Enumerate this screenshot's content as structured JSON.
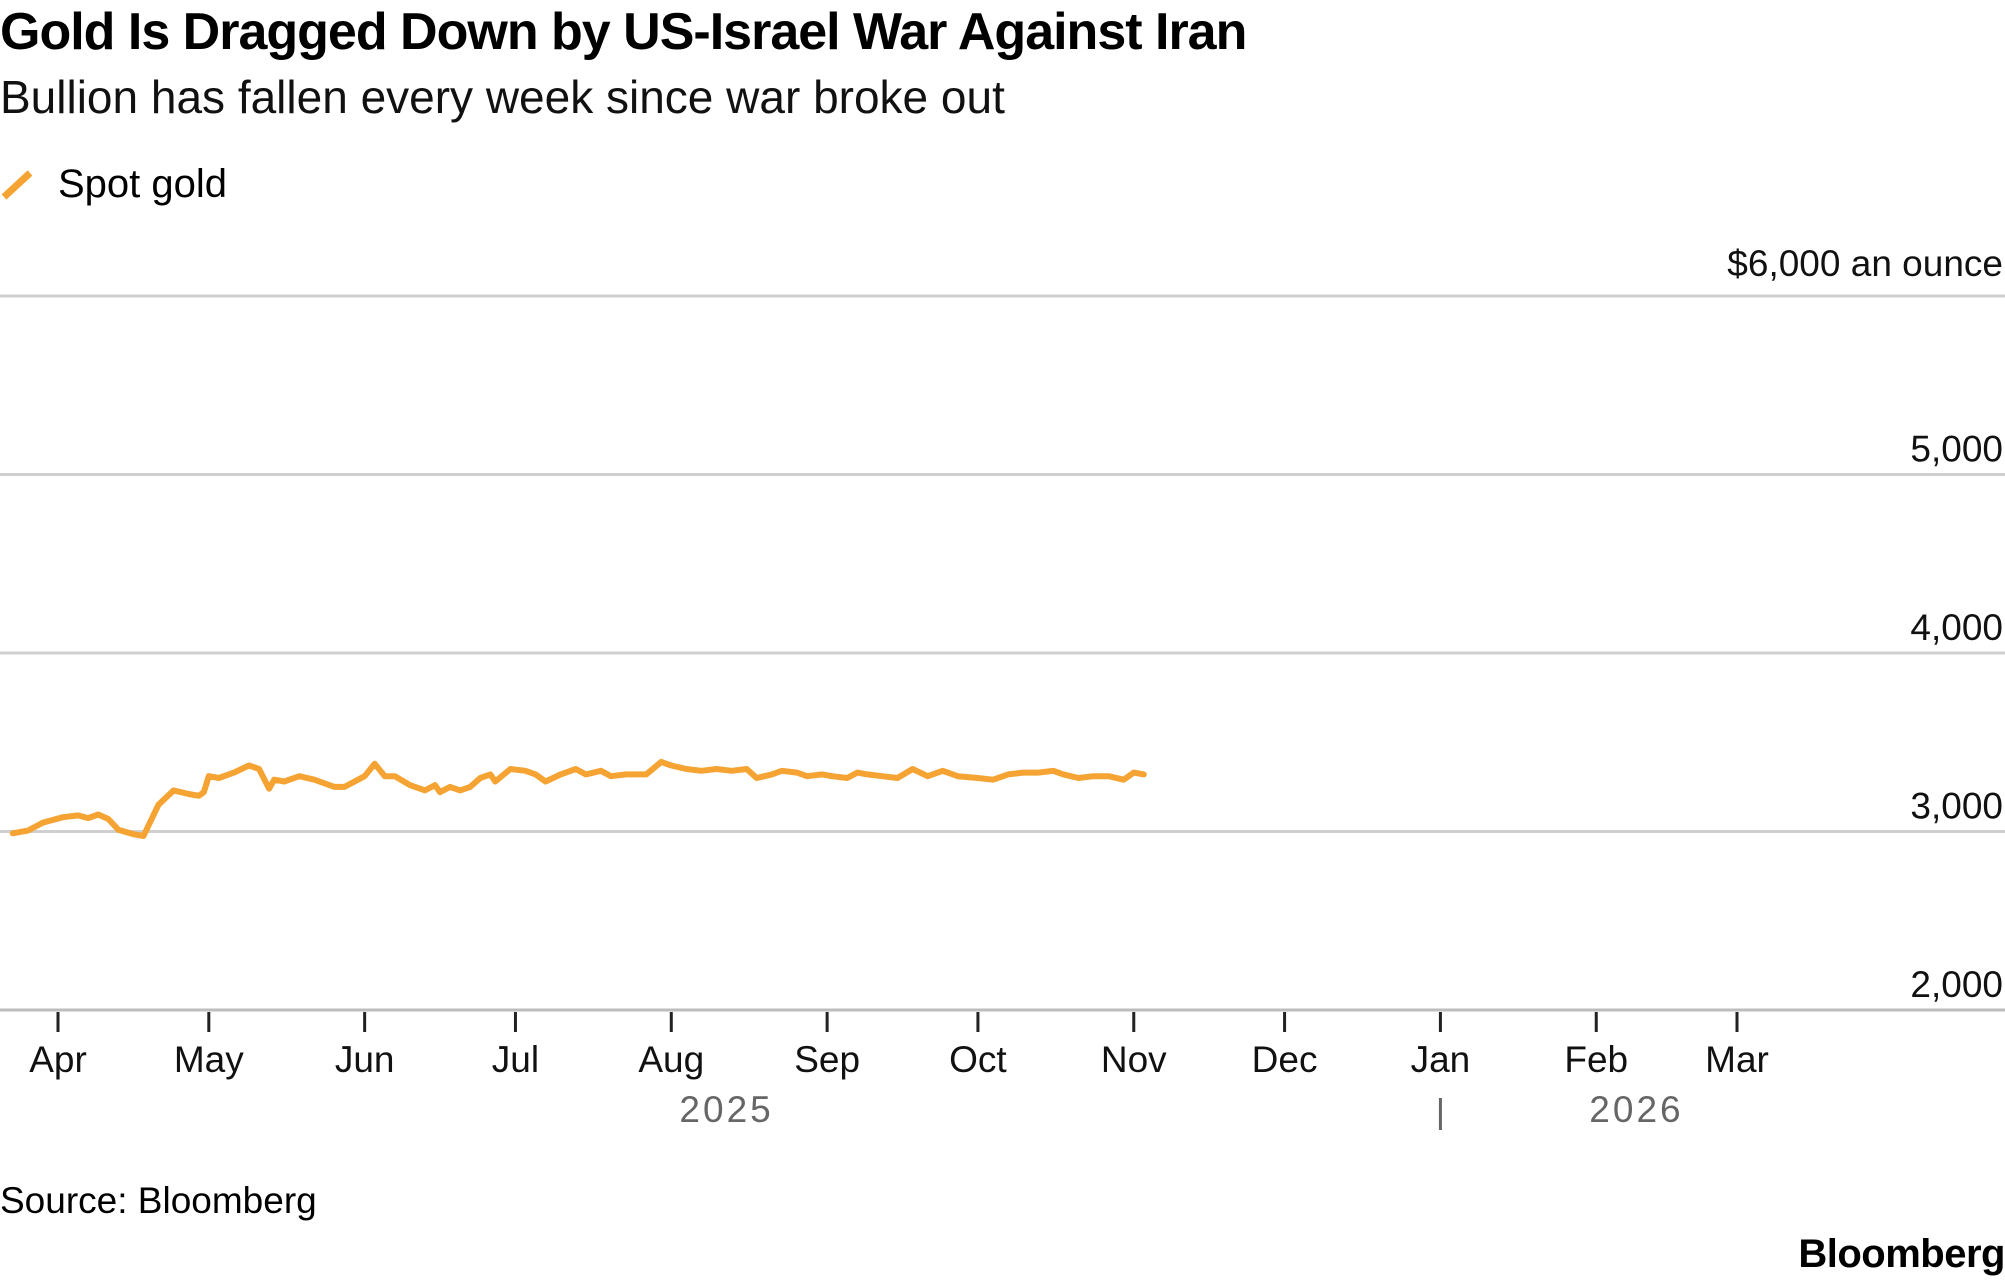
{
  "chart_data": {
    "type": "line",
    "title": "Gold Is Dragged Down by US-Israel War Against Iran",
    "subtitle": "Bullion has fallen every week since war broke out",
    "source": "Source: Bloomberg",
    "brand": "Bloomberg",
    "y_unit_label": "$6,000 an ounce",
    "ylim": [
      2000,
      6000
    ],
    "y_ticks": [
      {
        "value": 6000,
        "label": ""
      },
      {
        "value": 5000,
        "label": "5,000"
      },
      {
        "value": 4000,
        "label": "4,000"
      },
      {
        "value": 3000,
        "label": "3,000"
      },
      {
        "value": 2000,
        "label": "2,000"
      }
    ],
    "x_ticks": [
      {
        "date": "2025-04-01",
        "label": "Apr"
      },
      {
        "date": "2025-05-01",
        "label": "May"
      },
      {
        "date": "2025-06-01",
        "label": "Jun"
      },
      {
        "date": "2025-07-01",
        "label": "Jul"
      },
      {
        "date": "2025-08-01",
        "label": "Aug"
      },
      {
        "date": "2025-09-01",
        "label": "Sep"
      },
      {
        "date": "2025-10-01",
        "label": "Oct"
      },
      {
        "date": "2025-11-01",
        "label": "Nov"
      },
      {
        "date": "2025-12-01",
        "label": "Dec"
      },
      {
        "date": "2026-01-01",
        "label": "Jan"
      },
      {
        "date": "2026-02-01",
        "label": "Feb"
      },
      {
        "date": "2026-03-01",
        "label": "Mar"
      }
    ],
    "year_labels": [
      {
        "label": "2025",
        "date": "2025-08-12"
      },
      {
        "label": "2026",
        "date": "2026-02-09"
      }
    ],
    "year_divider_date": "2026-01-01",
    "series": [
      {
        "name": "Spot gold",
        "color": "#f5a332",
        "points": [
          [
            "2025-03-23",
            2990
          ],
          [
            "2025-03-26",
            3005
          ],
          [
            "2025-03-29",
            3050
          ],
          [
            "2025-04-02",
            3080
          ],
          [
            "2025-04-05",
            3090
          ],
          [
            "2025-04-07",
            3075
          ],
          [
            "2025-04-09",
            3095
          ],
          [
            "2025-04-11",
            3070
          ],
          [
            "2025-04-13",
            3010
          ],
          [
            "2025-04-16",
            2985
          ],
          [
            "2025-04-18",
            2975
          ],
          [
            "2025-04-21",
            3150
          ],
          [
            "2025-04-24",
            3230
          ],
          [
            "2025-04-27",
            3210
          ],
          [
            "2025-04-29",
            3200
          ],
          [
            "2025-04-30",
            3220
          ],
          [
            "2025-05-01",
            3310
          ],
          [
            "2025-05-03",
            3300
          ],
          [
            "2025-05-06",
            3330
          ],
          [
            "2025-05-09",
            3370
          ],
          [
            "2025-05-11",
            3350
          ],
          [
            "2025-05-13",
            3240
          ],
          [
            "2025-05-14",
            3290
          ],
          [
            "2025-05-16",
            3280
          ],
          [
            "2025-05-19",
            3310
          ],
          [
            "2025-05-22",
            3290
          ],
          [
            "2025-05-26",
            3250
          ],
          [
            "2025-05-28",
            3250
          ],
          [
            "2025-06-01",
            3310
          ],
          [
            "2025-06-03",
            3380
          ],
          [
            "2025-06-05",
            3310
          ],
          [
            "2025-06-07",
            3310
          ],
          [
            "2025-06-10",
            3260
          ],
          [
            "2025-06-13",
            3230
          ],
          [
            "2025-06-15",
            3260
          ],
          [
            "2025-06-16",
            3220
          ],
          [
            "2025-06-18",
            3250
          ],
          [
            "2025-06-20",
            3230
          ],
          [
            "2025-06-22",
            3250
          ],
          [
            "2025-06-24",
            3300
          ],
          [
            "2025-06-26",
            3320
          ],
          [
            "2025-06-27",
            3280
          ],
          [
            "2025-06-30",
            3350
          ],
          [
            "2025-07-03",
            3340
          ],
          [
            "2025-07-05",
            3320
          ],
          [
            "2025-07-07",
            3280
          ],
          [
            "2025-07-10",
            3320
          ],
          [
            "2025-07-13",
            3350
          ],
          [
            "2025-07-15",
            3320
          ],
          [
            "2025-07-18",
            3340
          ],
          [
            "2025-07-20",
            3310
          ],
          [
            "2025-07-23",
            3320
          ],
          [
            "2025-07-27",
            3320
          ],
          [
            "2025-07-30",
            3390
          ],
          [
            "2025-08-01",
            3370
          ],
          [
            "2025-08-04",
            3350
          ],
          [
            "2025-08-07",
            3340
          ],
          [
            "2025-08-10",
            3350
          ],
          [
            "2025-08-13",
            3340
          ],
          [
            "2025-08-16",
            3350
          ],
          [
            "2025-08-18",
            3300
          ],
          [
            "2025-08-21",
            3320
          ],
          [
            "2025-08-23",
            3340
          ],
          [
            "2025-08-26",
            3330
          ],
          [
            "2025-08-28",
            3310
          ],
          [
            "2025-08-31",
            3320
          ],
          [
            "2025-09-02",
            3310
          ],
          [
            "2025-09-05",
            3300
          ],
          [
            "2025-09-07",
            3330
          ],
          [
            "2025-09-09",
            3320
          ],
          [
            "2025-09-12",
            3310
          ],
          [
            "2025-09-15",
            3300
          ],
          [
            "2025-09-18",
            3350
          ],
          [
            "2025-09-21",
            3310
          ],
          [
            "2025-09-24",
            3340
          ],
          [
            "2025-09-27",
            3310
          ],
          [
            "2025-10-01",
            3300
          ],
          [
            "2025-10-04",
            3290
          ],
          [
            "2025-10-07",
            3320
          ],
          [
            "2025-10-10",
            3330
          ],
          [
            "2025-10-13",
            3330
          ],
          [
            "2025-10-16",
            3340
          ],
          [
            "2025-10-18",
            3320
          ],
          [
            "2025-10-21",
            3300
          ],
          [
            "2025-10-24",
            3310
          ],
          [
            "2025-10-27",
            3310
          ],
          [
            "2025-10-30",
            3290
          ],
          [
            "2025-11-01",
            3330
          ],
          [
            "2025-11-03",
            3320
          ]
        ]
      }
    ]
  }
}
